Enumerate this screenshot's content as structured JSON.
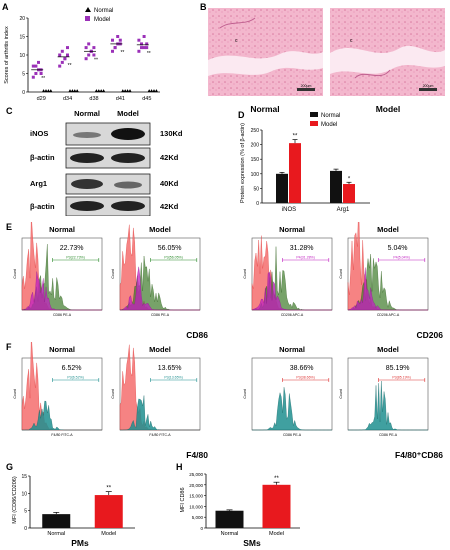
{
  "panels": {
    "A": {
      "label": "A",
      "ylabel": "Scores of arthritis index",
      "yticks": [
        "0",
        "5",
        "10",
        "15",
        "20"
      ],
      "legend": [
        {
          "name": "Normal",
          "color": "#000000",
          "marker": "triangle"
        },
        {
          "name": "Model",
          "color": "#9b30b8",
          "marker": "square"
        }
      ],
      "sig": "**"
    },
    "B": {
      "label": "B",
      "left": "Normal",
      "right": "Model",
      "scale_bar": "200µm",
      "marker": "c"
    },
    "C": {
      "label": "C",
      "header_left": "Normal",
      "header_right": "Model",
      "rows": [
        {
          "name": "iNOS",
          "size": "130Kd"
        },
        {
          "name": "β-actin",
          "size": "42Kd"
        },
        {
          "name": "Arg1",
          "size": "40Kd"
        },
        {
          "name": "β-actin",
          "size": "42Kd"
        }
      ]
    },
    "D": {
      "label": "D",
      "ylabel": "Protein expression (% of β-actin)",
      "yticks": [
        "0",
        "50",
        "100",
        "150",
        "200",
        "250"
      ],
      "legend": [
        {
          "name": "Normal",
          "color": "#111111"
        },
        {
          "name": "Model",
          "color": "#e8191e"
        }
      ],
      "sig": [
        "**",
        "*"
      ]
    },
    "E": {
      "label": "E",
      "marker_left": "CD86",
      "marker_right": "CD206",
      "plots": [
        {
          "title": "Normal",
          "pct": "22.73%",
          "gate": "P3(22.73%)",
          "axis": "CD86 PE-A"
        },
        {
          "title": "Model",
          "pct": "56.05%",
          "gate": "P3(56.05%)",
          "axis": "CD86 PE-A"
        },
        {
          "title": "Normal",
          "pct": "31.28%",
          "gate": "P4(31.28%)",
          "axis": "CD206 APC-A"
        },
        {
          "title": "Model",
          "pct": "5.04%",
          "gate": "P4(5.04%)",
          "axis": "CD206 APC-A"
        }
      ],
      "ylabel": "Count"
    },
    "F": {
      "label": "F",
      "marker_left": "F4/80",
      "marker_right": "F4/80⁺CD86",
      "plots": [
        {
          "title": "Normal",
          "pct": "6.52%",
          "gate": "P3(6.52%)",
          "axis": "F4/80 FITC-A"
        },
        {
          "title": "Model",
          "pct": "13.65%",
          "gate": "P3(13.65%)",
          "axis": "F4/80 FITC-A"
        },
        {
          "title": "Normal",
          "pct": "38.66%",
          "gate": "P3(38.66%)",
          "axis": "CD86 PE-A"
        },
        {
          "title": "Model",
          "pct": "85.19%",
          "gate": "P3(85.19%)",
          "axis": "CD86 PE-A"
        }
      ],
      "ylabel": "Count"
    },
    "G": {
      "label": "G",
      "ylabel": "MFI (CD86/CD206)",
      "yticks": [
        "0",
        "5",
        "10",
        "15"
      ],
      "sig": "**",
      "caption": "PMs"
    },
    "H": {
      "label": "H",
      "ylabel": "MFI CD86",
      "yticks": [
        "0",
        "5,000",
        "10,000",
        "15,000",
        "20,000",
        "25,000"
      ],
      "sig": "**",
      "caption": "SMs"
    }
  },
  "chart_data": [
    {
      "type": "scatter",
      "panel": "A",
      "categories": [
        "d29",
        "d34",
        "d38",
        "d41",
        "d45"
      ],
      "ylim": [
        0,
        20
      ],
      "series": [
        {
          "name": "Normal",
          "values": [
            [
              0,
              0,
              0,
              0,
              0,
              0,
              0,
              0
            ],
            [
              0,
              0,
              0,
              0,
              0,
              0,
              0,
              0
            ],
            [
              0,
              0,
              0,
              0,
              0,
              0,
              0,
              0
            ],
            [
              0,
              0,
              0,
              0,
              0,
              0,
              0,
              0
            ],
            [
              0,
              0,
              0,
              0,
              0,
              0,
              0,
              0
            ]
          ]
        },
        {
          "name": "Model",
          "values": [
            [
              4,
              5,
              6,
              6,
              7,
              7,
              8,
              5
            ],
            [
              7,
              8,
              9,
              10,
              10,
              11,
              9,
              12
            ],
            [
              9,
              10,
              11,
              12,
              12,
              13,
              11,
              10
            ],
            [
              11,
              12,
              13,
              13,
              14,
              12,
              15,
              14
            ],
            [
              11,
              12,
              12,
              13,
              14,
              13,
              15,
              12
            ]
          ]
        }
      ]
    },
    {
      "type": "bar",
      "panel": "D",
      "categories": [
        "iNOS",
        "Arg1"
      ],
      "ylim": [
        0,
        250
      ],
      "series": [
        {
          "name": "Normal",
          "values": [
            100,
            110
          ],
          "errors": [
            5,
            6
          ]
        },
        {
          "name": "Model",
          "values": [
            205,
            65
          ],
          "errors": [
            12,
            6
          ]
        }
      ]
    },
    {
      "type": "bar",
      "panel": "G",
      "categories": [
        "Normal",
        "Model"
      ],
      "ylim": [
        0,
        15
      ],
      "values": [
        4,
        9.5
      ],
      "errors": [
        0.5,
        1.0
      ]
    },
    {
      "type": "bar",
      "panel": "H",
      "categories": [
        "Normal",
        "Model"
      ],
      "ylim": [
        0,
        25000
      ],
      "values": [
        8000,
        20000
      ],
      "errors": [
        400,
        1200
      ]
    }
  ]
}
